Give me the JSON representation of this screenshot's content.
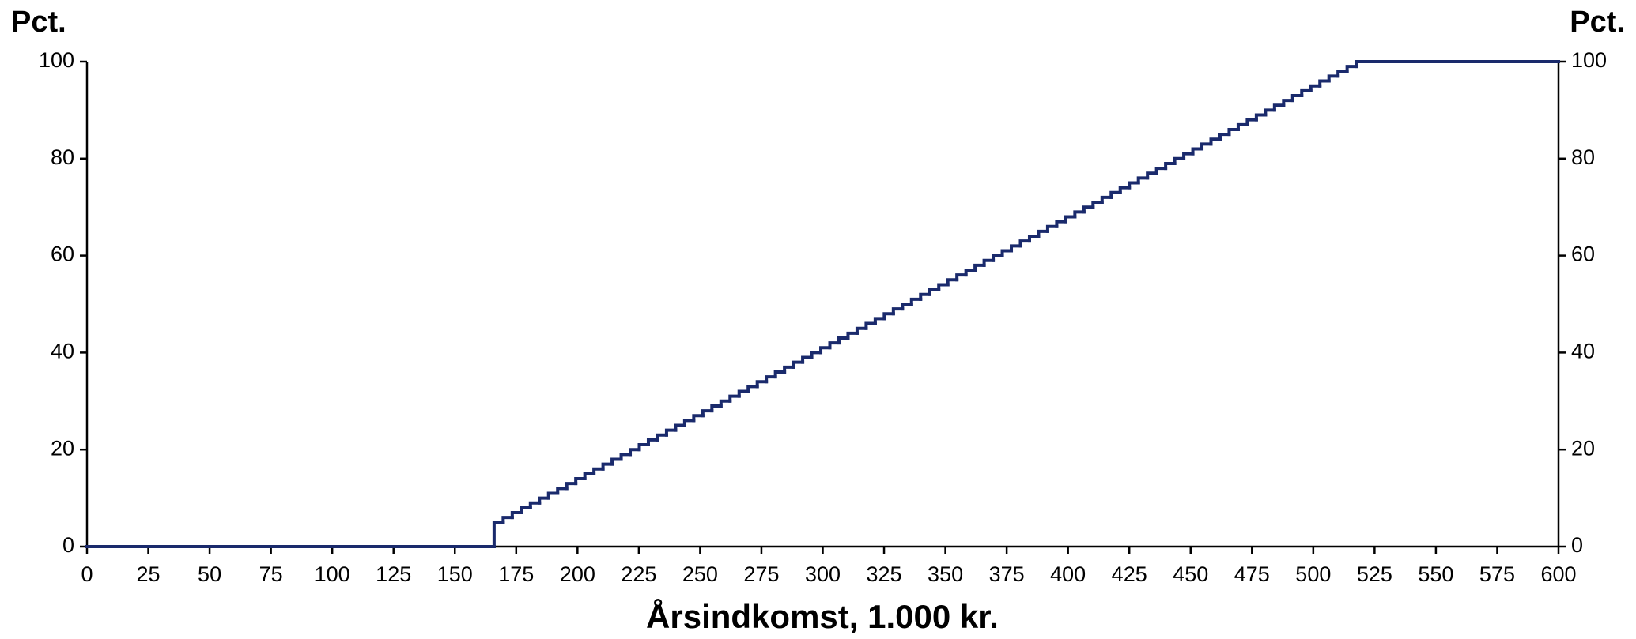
{
  "chart_data": {
    "type": "step",
    "y_label": "Pct.",
    "y2_label": "Pct.",
    "x_label": "Årsindkomst, 1.000 kr.",
    "xlim": [
      0,
      600
    ],
    "xticks": [
      0,
      25,
      50,
      75,
      100,
      125,
      150,
      175,
      200,
      225,
      250,
      275,
      300,
      325,
      350,
      375,
      400,
      425,
      450,
      475,
      500,
      525,
      550,
      575,
      600
    ],
    "ylim": [
      0,
      100
    ],
    "yticks": [
      0,
      20,
      40,
      60,
      80,
      100
    ],
    "y2lim": [
      0,
      100
    ],
    "y2ticks": [
      0,
      20,
      40,
      60,
      80,
      100
    ],
    "color": "#1a2a6c",
    "x": [
      0,
      166,
      169.7,
      173.4,
      177.1,
      180.8,
      184.5,
      188.2,
      191.9,
      195.6,
      199.3,
      203,
      206.7,
      210.4,
      214.1,
      217.8,
      221.5,
      225.2,
      228.9,
      232.6,
      236.3,
      240,
      243.7,
      247.4,
      251.1,
      254.8,
      258.5,
      262.2,
      265.9,
      269.6,
      273.3,
      277,
      280.7,
      284.4,
      288.1,
      291.8,
      295.5,
      299.2,
      302.9,
      306.6,
      310.3,
      314,
      317.7,
      321.4,
      325.1,
      328.8,
      332.5,
      336.2,
      339.9,
      343.6,
      347.3,
      351,
      354.7,
      358.4,
      362.1,
      365.8,
      369.5,
      373.2,
      376.9,
      380.6,
      384.3,
      388,
      391.7,
      395.4,
      399.1,
      402.8,
      406.5,
      410.2,
      413.9,
      417.6,
      421.3,
      425,
      428.7,
      432.4,
      436.1,
      439.8,
      443.5,
      447.2,
      450.9,
      454.6,
      458.3,
      462,
      465.7,
      469.4,
      473.1,
      476.8,
      480.5,
      484.2,
      487.9,
      491.6,
      495.3,
      499,
      502.7,
      506.4,
      510.1,
      513.8,
      517.5
    ],
    "values": [
      0,
      5,
      6,
      7,
      8,
      9,
      10,
      11,
      12,
      13,
      14,
      15,
      16,
      17,
      18,
      19,
      20,
      21,
      22,
      23,
      24,
      25,
      26,
      27,
      28,
      29,
      30,
      31,
      32,
      33,
      34,
      35,
      36,
      37,
      38,
      39,
      40,
      41,
      42,
      43,
      44,
      45,
      46,
      47,
      48,
      49,
      50,
      51,
      52,
      53,
      54,
      55,
      56,
      57,
      58,
      59,
      60,
      61,
      62,
      63,
      64,
      65,
      66,
      67,
      68,
      69,
      70,
      71,
      72,
      73,
      74,
      75,
      76,
      77,
      78,
      79,
      80,
      81,
      82,
      83,
      84,
      85,
      86,
      87,
      88,
      89,
      90,
      91,
      92,
      93,
      94,
      95,
      96,
      97,
      98,
      99,
      100
    ]
  }
}
